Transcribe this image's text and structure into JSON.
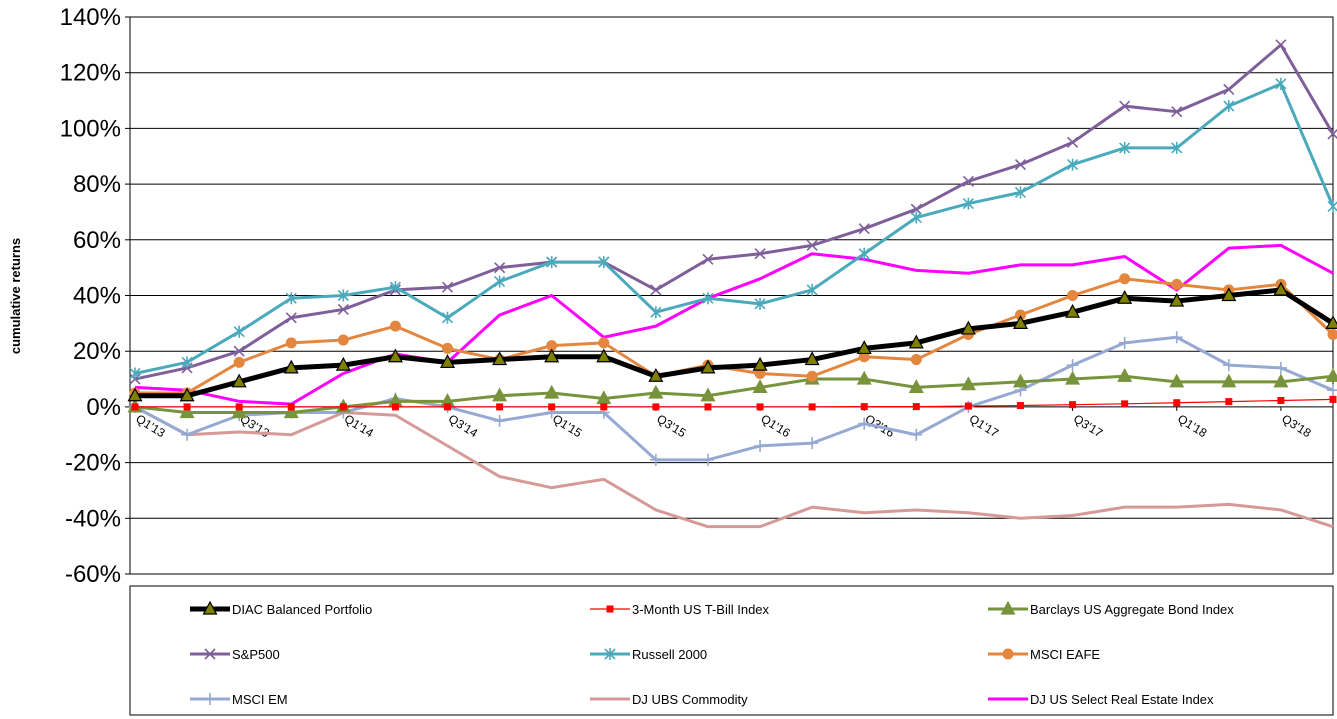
{
  "chart_data": {
    "type": "line",
    "title": "",
    "xlabel": "",
    "ylabel": "cumulative returns",
    "ylim": [
      -60,
      140
    ],
    "y_tick_labels": [
      "-60%",
      "-40%",
      "-20%",
      "0%",
      "20%",
      "40%",
      "60%",
      "80%",
      "100%",
      "120%",
      "140%"
    ],
    "x_tick_labels": [
      "Q1'13",
      "Q3'13",
      "Q1'14",
      "Q3'14",
      "Q1'15",
      "Q3'15",
      "Q1'16",
      "Q3'16",
      "Q1'17",
      "Q3'17",
      "Q1'18",
      "Q3'18"
    ],
    "x": [
      "Q1'13",
      "Q2'13",
      "Q3'13",
      "Q4'13",
      "Q1'14",
      "Q2'14",
      "Q3'14",
      "Q4'14",
      "Q1'15",
      "Q2'15",
      "Q3'15",
      "Q4'15",
      "Q1'16",
      "Q2'16",
      "Q3'16",
      "Q4'16",
      "Q1'17",
      "Q2'17",
      "Q3'17",
      "Q4'17",
      "Q1'18",
      "Q2'18",
      "Q3'18",
      "Q4'18"
    ],
    "grid": true,
    "legend_position": "bottom",
    "series": [
      {
        "name": "DIAC Balanced Portfolio",
        "color": "#000000",
        "marker": "triangle",
        "values": [
          4,
          4,
          9,
          14,
          15,
          18,
          16,
          17,
          18,
          18,
          11,
          14,
          15,
          17,
          21,
          23,
          28,
          30,
          34,
          39,
          38,
          40,
          42,
          30
        ]
      },
      {
        "name": "3-Month US T-Bill Index",
        "color": "#ff0000",
        "marker": "square",
        "values": [
          0,
          0,
          0,
          0,
          0,
          0,
          0,
          0,
          0,
          0,
          0,
          0,
          0,
          0,
          0.1,
          0.1,
          0.3,
          0.5,
          0.8,
          1.1,
          1.5,
          1.9,
          2.3,
          2.7
        ]
      },
      {
        "name": "Barclays US Aggregate Bond Index",
        "color": "#77933c",
        "marker": "triangle",
        "values": [
          0,
          -2,
          -2,
          -2,
          0,
          2,
          2,
          4,
          5,
          3,
          5,
          4,
          7,
          10,
          10,
          7,
          8,
          9,
          10,
          11,
          9,
          9,
          9,
          11
        ]
      },
      {
        "name": "S&P500",
        "color": "#7f5f9a",
        "marker": "x",
        "values": [
          10,
          14,
          20,
          32,
          35,
          42,
          43,
          50,
          52,
          52,
          42,
          53,
          55,
          58,
          64,
          71,
          81,
          87,
          95,
          108,
          106,
          114,
          130,
          98
        ]
      },
      {
        "name": "Russell 2000",
        "color": "#4aaabc",
        "marker": "star",
        "values": [
          12,
          16,
          27,
          39,
          40,
          43,
          32,
          45,
          52,
          52,
          34,
          39,
          37,
          42,
          55,
          68,
          73,
          77,
          87,
          93,
          93,
          108,
          116,
          72
        ]
      },
      {
        "name": "MSCI EAFE",
        "color": "#e4863e",
        "marker": "circle",
        "values": [
          5,
          5,
          16,
          23,
          24,
          29,
          21,
          17,
          22,
          23,
          11,
          15,
          12,
          11,
          18,
          17,
          26,
          33,
          40,
          46,
          44,
          42,
          44,
          26
        ]
      },
      {
        "name": "MSCI EM",
        "color": "#95a9d2",
        "marker": "plus",
        "values": [
          0,
          -10,
          -3,
          -2,
          -2,
          3,
          0,
          -5,
          -2,
          -2,
          -19,
          -19,
          -14,
          -13,
          -6,
          -10,
          0,
          6,
          15,
          23,
          25,
          15,
          14,
          6
        ]
      },
      {
        "name": "DJ UBS Commodity",
        "color": "#d59a98",
        "marker": "none",
        "values": [
          0,
          -10,
          -9,
          -10,
          -2,
          -3,
          -14,
          -25,
          -29,
          -26,
          -37,
          -43,
          -43,
          -36,
          -38,
          -37,
          -38,
          -40,
          -39,
          -36,
          -36,
          -35,
          -37,
          -43
        ]
      },
      {
        "name": "DJ US Select Real Estate Index",
        "color": "#ff00ff",
        "marker": "none",
        "values": [
          7,
          6,
          2,
          1,
          12,
          19,
          16,
          33,
          40,
          25,
          29,
          39,
          46,
          55,
          53,
          49,
          48,
          51,
          51,
          54,
          42,
          57,
          58,
          48
        ]
      }
    ]
  }
}
